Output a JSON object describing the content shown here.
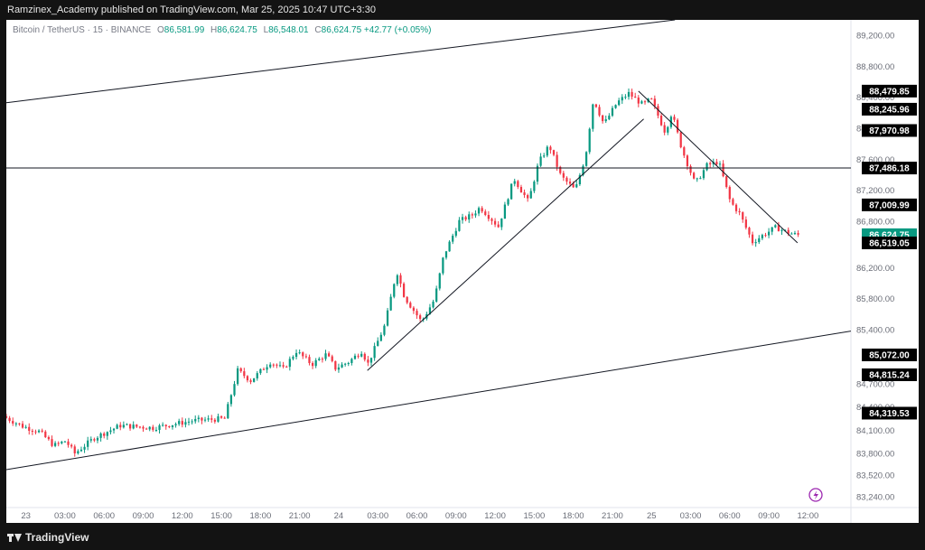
{
  "header": {
    "publisher": "Ramzinex_Academy published on TradingView.com, Mar 25, 2025 10:47 UTC+3:30"
  },
  "legend": {
    "symbol": "Bitcoin / TetherUS · 15 · BINANCE",
    "open_label": "O",
    "open": "86,581.99",
    "high_label": "H",
    "high": "86,624.75",
    "low_label": "L",
    "low": "86,548.01",
    "close_label": "C",
    "close": "86,624.75",
    "change": "+42.77 (+0.05%)"
  },
  "footer": {
    "brand": "TradingView"
  },
  "colors": {
    "up": "#089981",
    "down": "#f23645",
    "line": "#131722",
    "tag_bg": "#000000",
    "last_price_bg": "#089981"
  },
  "icons": {
    "flash": "lightning-bolt-icon",
    "logo": "tradingview-logo-icon"
  },
  "chart_data": {
    "type": "candlestick",
    "title": "Bitcoin / TetherUS · 15 · BINANCE",
    "xlabel": "",
    "ylabel": "",
    "ylim": [
      83100,
      89400
    ],
    "x_ticks": [
      "23",
      "03:00",
      "06:00",
      "09:00",
      "12:00",
      "15:00",
      "18:00",
      "21:00",
      "24",
      "03:00",
      "06:00",
      "09:00",
      "12:00",
      "15:00",
      "18:00",
      "21:00",
      "25",
      "03:00",
      "06:00",
      "09:00",
      "12:00"
    ],
    "x_tick_hours": [
      0,
      3,
      6,
      9,
      12,
      15,
      18,
      21,
      24,
      27,
      30,
      33,
      36,
      39,
      42,
      45,
      48,
      51,
      54,
      57,
      60
    ],
    "y_ticks": [
      "89,200.00",
      "88,800.00",
      "88,400.00",
      "88,000.00",
      "87,600.00",
      "87,200.00",
      "86,800.00",
      "86,200.00",
      "85,800.00",
      "85,400.00",
      "84,700.00",
      "84,400.00",
      "84,100.00",
      "83,800.00",
      "83,520.00",
      "83,240.00"
    ],
    "y_tick_values": [
      89200,
      88800,
      88400,
      88000,
      87600,
      87200,
      86800,
      86200,
      85800,
      85400,
      84700,
      84400,
      84100,
      83800,
      83520,
      83240
    ],
    "price_tags": [
      {
        "label": "88,479.85",
        "value": 88479.85,
        "highlight": false
      },
      {
        "label": "88,245.96",
        "value": 88245.96,
        "highlight": false
      },
      {
        "label": "87,970.98",
        "value": 87970.98,
        "highlight": false
      },
      {
        "label": "87,486.18",
        "value": 87486.18,
        "highlight": false
      },
      {
        "label": "87,009.99",
        "value": 87009.99,
        "highlight": false
      },
      {
        "label": "86,624.75",
        "value": 86624.75,
        "highlight": true
      },
      {
        "label": "86,519.05",
        "value": 86519.05,
        "highlight": false
      },
      {
        "label": "85,072.00",
        "value": 85072.0,
        "highlight": false
      },
      {
        "label": "84,815.24",
        "value": 84815.24,
        "highlight": false
      },
      {
        "label": "84,319.53",
        "value": 84319.53,
        "highlight": false
      }
    ],
    "horizontal_lines": [
      87486.18
    ],
    "trend_lines": [
      {
        "name": "channel-upper",
        "points": [
          [
            -1.5,
            88330
          ],
          [
            49.8,
            89400
          ]
        ]
      },
      {
        "name": "channel-lower",
        "points": [
          [
            -1.5,
            83590
          ],
          [
            63.3,
            85380
          ]
        ]
      },
      {
        "name": "rising-trendline",
        "points": [
          [
            26.2,
            84870
          ],
          [
            47.4,
            88120
          ]
        ]
      },
      {
        "name": "falling-trendline",
        "points": [
          [
            47.0,
            88480
          ],
          [
            59.2,
            86520
          ]
        ]
      }
    ],
    "path": [
      [
        -1.5,
        84280
      ],
      [
        0,
        84150
      ],
      [
        1.3,
        84080
      ],
      [
        2.4,
        83900
      ],
      [
        3.3,
        83960
      ],
      [
        4.0,
        83800
      ],
      [
        5.5,
        84000
      ],
      [
        7.5,
        84160
      ],
      [
        10,
        84130
      ],
      [
        13,
        84220
      ],
      [
        15.5,
        84250
      ],
      [
        16.5,
        84870
      ],
      [
        17.5,
        84740
      ],
      [
        19.0,
        84980
      ],
      [
        20,
        84890
      ],
      [
        21,
        85120
      ],
      [
        22.2,
        84950
      ],
      [
        23.3,
        85080
      ],
      [
        24,
        84900
      ],
      [
        25,
        84980
      ],
      [
        26,
        85120
      ],
      [
        26.5,
        84960
      ],
      [
        27.8,
        85460
      ],
      [
        28.7,
        86160
      ],
      [
        29.3,
        85820
      ],
      [
        30.6,
        85500
      ],
      [
        31.6,
        85790
      ],
      [
        32.3,
        86350
      ],
      [
        33.5,
        86800
      ],
      [
        34.5,
        86880
      ],
      [
        35.1,
        86980
      ],
      [
        36.5,
        86730
      ],
      [
        37.7,
        87350
      ],
      [
        38.8,
        87050
      ],
      [
        39.6,
        87560
      ],
      [
        40.4,
        87780
      ],
      [
        41.3,
        87380
      ],
      [
        42.4,
        87200
      ],
      [
        43.2,
        87650
      ],
      [
        43.8,
        88380
      ],
      [
        44.6,
        88050
      ],
      [
        45.6,
        88330
      ],
      [
        46.5,
        88450
      ],
      [
        47.6,
        88300
      ],
      [
        48.2,
        88380
      ],
      [
        49.3,
        87950
      ],
      [
        49.8,
        88200
      ],
      [
        50.6,
        87720
      ],
      [
        51.6,
        87280
      ],
      [
        52.5,
        87520
      ],
      [
        53.4,
        87570
      ],
      [
        54.3,
        87050
      ],
      [
        55.0,
        86900
      ],
      [
        56.0,
        86530
      ],
      [
        57.0,
        86640
      ],
      [
        57.8,
        86720
      ],
      [
        58.6,
        86660
      ],
      [
        59.3,
        86624.75
      ]
    ],
    "x_range_hours": [
      -1.5,
      63.3
    ]
  }
}
